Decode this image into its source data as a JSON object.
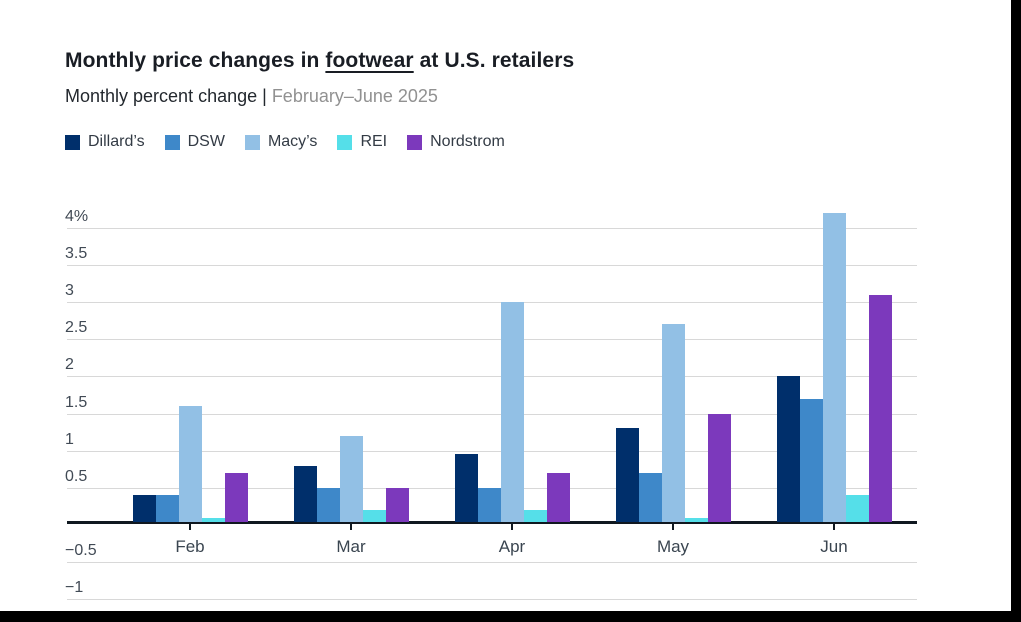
{
  "header": {
    "title_prefix": "Monthly price changes in ",
    "title_underlined": "footwear",
    "title_suffix": " at U.S. retailers",
    "subtitle_main": "Monthly percent change | ",
    "subtitle_period": "February–June 2025"
  },
  "chart_data": {
    "type": "bar",
    "title": "Monthly price changes in footwear at U.S. retailers",
    "subtitle": "Monthly percent change | February–June 2025",
    "categories": [
      "Feb",
      "Mar",
      "Apr",
      "May",
      "Jun"
    ],
    "series": [
      {
        "name": "Dillard’s",
        "color": "#002f6b",
        "values": [
          0.4,
          0.8,
          0.95,
          1.3,
          2.0
        ]
      },
      {
        "name": "DSW",
        "color": "#3e88c9",
        "values": [
          0.4,
          0.5,
          0.5,
          0.7,
          1.7
        ]
      },
      {
        "name": "Macy’s",
        "color": "#92c0e5",
        "values": [
          1.6,
          1.2,
          3.0,
          2.7,
          4.2
        ]
      },
      {
        "name": "REI",
        "color": "#55dfe9",
        "values": [
          0.1,
          0.2,
          0.2,
          0.1,
          0.4
        ]
      },
      {
        "name": "Nordstrom",
        "color": "#7c39bc",
        "values": [
          0.7,
          0.5,
          0.7,
          1.5,
          3.1
        ]
      }
    ],
    "xlabel": "",
    "ylabel": "Monthly percent change",
    "ylim": [
      -1,
      4.2
    ],
    "y_ticks": [
      {
        "value": 4,
        "label": "4%"
      },
      {
        "value": 3.5,
        "label": "3.5"
      },
      {
        "value": 3,
        "label": "3"
      },
      {
        "value": 2.5,
        "label": "2.5"
      },
      {
        "value": 2,
        "label": "2"
      },
      {
        "value": 1.5,
        "label": "1.5"
      },
      {
        "value": 1,
        "label": "1"
      },
      {
        "value": 0.5,
        "label": "0.5"
      },
      {
        "value": -0.5,
        "label": "−0.5"
      },
      {
        "value": -1,
        "label": "−1"
      }
    ],
    "grid": true,
    "legend_position": "top-left"
  }
}
